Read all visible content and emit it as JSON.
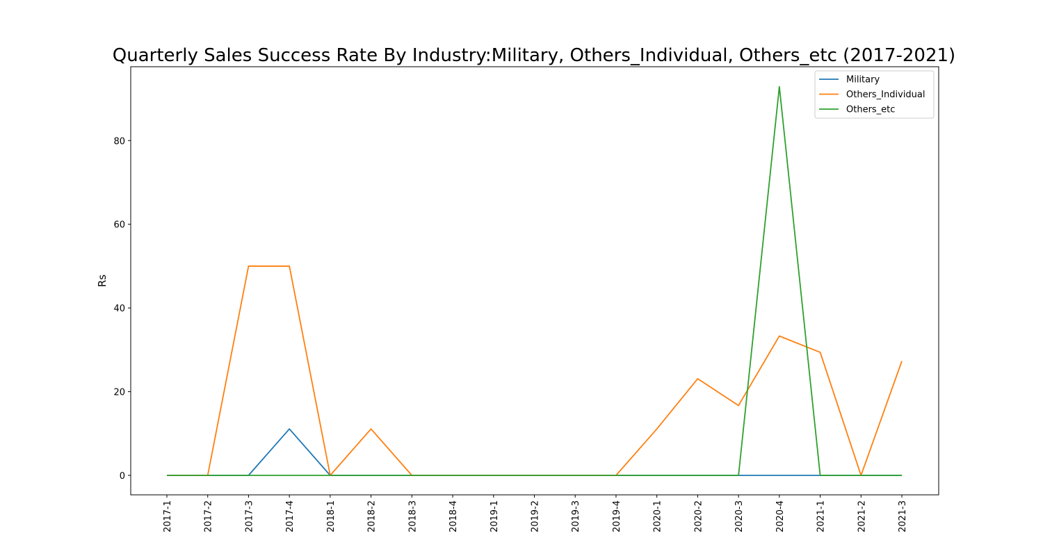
{
  "chart_data": {
    "type": "line",
    "title": "Quarterly Sales Success Rate By Industry:Military, Others_Individual, Others_etc (2017-2021)",
    "xlabel": "",
    "ylabel": "Rs",
    "categories": [
      "2017-1",
      "2017-2",
      "2017-3",
      "2017-4",
      "2018-1",
      "2018-2",
      "2018-3",
      "2018-4",
      "2019-1",
      "2019-2",
      "2019-3",
      "2019-4",
      "2020-1",
      "2020-2",
      "2020-3",
      "2020-4",
      "2021-1",
      "2021-2",
      "2021-3"
    ],
    "ylim": [
      -4.65,
      97.65
    ],
    "yticks": [
      0,
      20,
      40,
      60,
      80
    ],
    "grid": false,
    "legend_position": "top-right",
    "series": [
      {
        "name": "Military",
        "color": "#1f77b4",
        "values": [
          0,
          0,
          0,
          11.1,
          0,
          0,
          0,
          0,
          0,
          0,
          0,
          0,
          0,
          0,
          0,
          0,
          0,
          0,
          0
        ]
      },
      {
        "name": "Others_Individual",
        "color": "#ff7f0e",
        "values": [
          0,
          0,
          50,
          50,
          0,
          11.1,
          0,
          0,
          0,
          0,
          0,
          0,
          11.1,
          23.1,
          16.7,
          33.3,
          29.4,
          0,
          27.3
        ]
      },
      {
        "name": "Others_etc",
        "color": "#2ca02c",
        "values": [
          0,
          0,
          0,
          0,
          0,
          0,
          0,
          0,
          0,
          0,
          0,
          0,
          0,
          0,
          0,
          92.9,
          0,
          0,
          0
        ]
      }
    ]
  }
}
